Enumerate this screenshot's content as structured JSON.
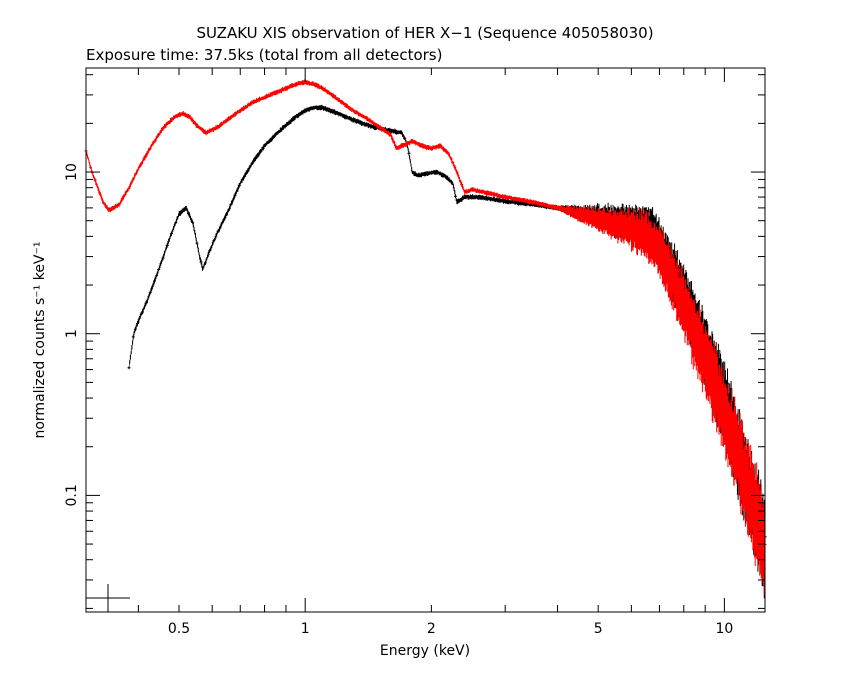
{
  "chart_data": {
    "type": "scatter",
    "title": "SUZAKU XIS observation of HER X−1 (Sequence 405058030)",
    "subtitle": "Exposure time: 37.5ks (total from all detectors)",
    "xlabel": "Energy (keV)",
    "ylabel": "normalized counts s⁻¹ keV⁻¹",
    "xscale": "log",
    "yscale": "log",
    "xlim": [
      0.3,
      12.5
    ],
    "ylim": [
      0.019,
      44
    ],
    "xticks": [
      {
        "value": 0.5,
        "label": "0.5"
      },
      {
        "value": 1,
        "label": "1"
      },
      {
        "value": 2,
        "label": "2"
      },
      {
        "value": 5,
        "label": "5"
      },
      {
        "value": 10,
        "label": "10"
      }
    ],
    "yticks": [
      {
        "value": 0.1,
        "label": "0.1"
      },
      {
        "value": 1,
        "label": "1"
      },
      {
        "value": 10,
        "label": "10"
      }
    ],
    "colors": {
      "black_series": "#000000",
      "red_series": "#ff0000"
    },
    "series": [
      {
        "color": "#000000",
        "x": [
          0.38,
          0.39,
          0.4,
          0.42,
          0.45,
          0.48,
          0.5,
          0.52,
          0.54,
          0.56,
          0.57,
          0.59,
          0.62,
          0.66,
          0.7,
          0.75,
          0.8,
          0.85,
          0.9,
          0.95,
          1.0,
          1.05,
          1.1,
          1.2,
          1.3,
          1.45,
          1.6,
          1.7,
          1.75,
          1.8,
          1.85,
          1.95,
          2.05,
          2.15,
          2.25,
          2.3,
          2.4,
          2.6,
          3.0,
          3.5,
          4.0,
          4.5,
          5.0,
          5.5,
          6.0,
          6.5,
          6.7,
          7.0,
          7.5,
          8.0,
          8.5,
          9.0,
          9.5,
          10.0,
          10.5,
          11.0,
          11.5,
          12.0,
          12.5
        ],
        "y": [
          0.62,
          1.0,
          1.2,
          1.6,
          2.6,
          4.2,
          5.5,
          6.0,
          4.8,
          3.0,
          2.5,
          3.2,
          4.3,
          6.0,
          8.5,
          11.5,
          14.5,
          17.0,
          19.5,
          22.0,
          24.0,
          25.0,
          25.0,
          23.0,
          21.0,
          19.0,
          18.0,
          17.5,
          15.0,
          10.0,
          9.5,
          9.8,
          10.0,
          9.5,
          8.5,
          6.5,
          7.0,
          7.0,
          6.6,
          6.3,
          6.0,
          5.6,
          5.3,
          5.0,
          4.8,
          4.6,
          4.3,
          3.5,
          2.5,
          1.7,
          1.15,
          0.8,
          0.55,
          0.36,
          0.24,
          0.16,
          0.1,
          0.07,
          0.05
        ]
      },
      {
        "color": "#ff0000",
        "x": [
          0.3,
          0.31,
          0.32,
          0.33,
          0.34,
          0.36,
          0.38,
          0.4,
          0.43,
          0.46,
          0.49,
          0.51,
          0.53,
          0.55,
          0.58,
          0.62,
          0.66,
          0.7,
          0.75,
          0.8,
          0.85,
          0.9,
          0.95,
          1.0,
          1.05,
          1.1,
          1.2,
          1.3,
          1.4,
          1.5,
          1.6,
          1.65,
          1.7,
          1.8,
          1.9,
          2.0,
          2.1,
          2.2,
          2.3,
          2.4,
          2.5,
          3.0,
          3.5,
          4.0,
          4.5,
          5.0,
          5.5,
          6.0,
          6.5,
          7.0,
          7.5,
          8.0,
          8.5,
          9.0,
          9.5,
          10.0,
          10.5,
          11.0,
          11.5,
          12.0,
          12.5
        ],
        "y": [
          13.5,
          10.0,
          8.0,
          6.5,
          5.8,
          6.3,
          8.0,
          10.5,
          14.5,
          19.0,
          22.0,
          23.0,
          22.0,
          19.5,
          17.5,
          19.0,
          21.5,
          24.0,
          27.0,
          29.0,
          31.0,
          33.0,
          35.0,
          36.0,
          35.0,
          33.0,
          28.0,
          24.0,
          21.5,
          19.0,
          17.0,
          14.0,
          14.5,
          15.5,
          14.5,
          14.0,
          14.5,
          13.0,
          10.0,
          7.5,
          7.8,
          7.0,
          6.5,
          6.0,
          5.5,
          5.1,
          4.7,
          4.4,
          4.1,
          3.2,
          2.2,
          1.5,
          1.0,
          0.7,
          0.48,
          0.32,
          0.22,
          0.15,
          0.1,
          0.07,
          0.045
        ]
      }
    ]
  }
}
